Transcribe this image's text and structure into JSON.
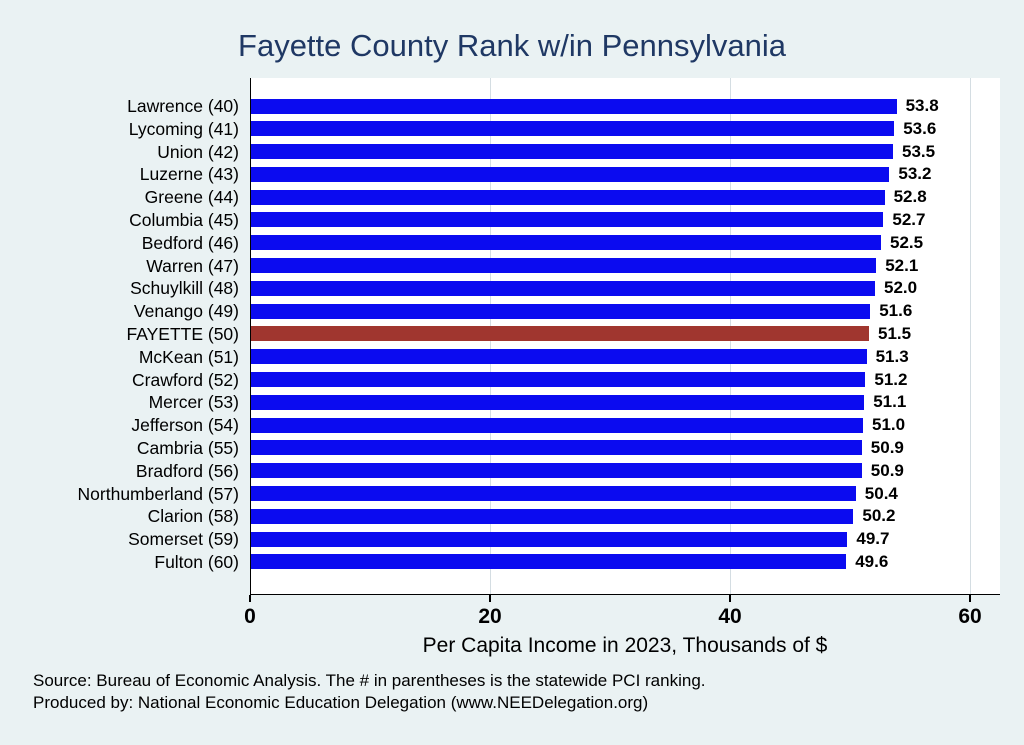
{
  "chart_data": {
    "type": "bar",
    "orientation": "horizontal",
    "title": "Fayette County Rank w/in Pennsylvania",
    "xlabel": "Per Capita Income in 2023, Thousands of $",
    "categories": [
      "Lawrence (40)",
      "Lycoming (41)",
      "Union (42)",
      "Luzerne (43)",
      "Greene (44)",
      "Columbia (45)",
      "Bedford (46)",
      "Warren (47)",
      "Schuylkill (48)",
      "Venango (49)",
      "FAYETTE (50)",
      "McKean (51)",
      "Crawford (52)",
      "Mercer (53)",
      "Jefferson (54)",
      "Cambria (55)",
      "Bradford (56)",
      "Northumberland (57)",
      "Clarion (58)",
      "Somerset (59)",
      "Fulton (60)"
    ],
    "values": [
      53.8,
      53.6,
      53.5,
      53.2,
      52.8,
      52.7,
      52.5,
      52.1,
      52.0,
      51.6,
      51.5,
      51.3,
      51.2,
      51.1,
      51.0,
      50.9,
      50.9,
      50.4,
      50.2,
      49.7,
      49.6
    ],
    "highlight_index": 10,
    "bar_color": "#0b0bf0",
    "highlight_color": "#a0362f",
    "xticks": [
      0,
      20,
      40,
      60
    ],
    "xlim": [
      0,
      60
    ],
    "grid": "vertical",
    "legend_position": "none",
    "plot_bg": "#ffffff",
    "page_bg": "#eaf2f3",
    "title_color": "#1f3864"
  },
  "footer": {
    "source_line": "Source: Bureau of Economic Analysis. The # in parentheses is the statewide PCI ranking.",
    "produced_line": "Produced by: National Economic Education Delegation (www.NEEDelegation.org)"
  }
}
